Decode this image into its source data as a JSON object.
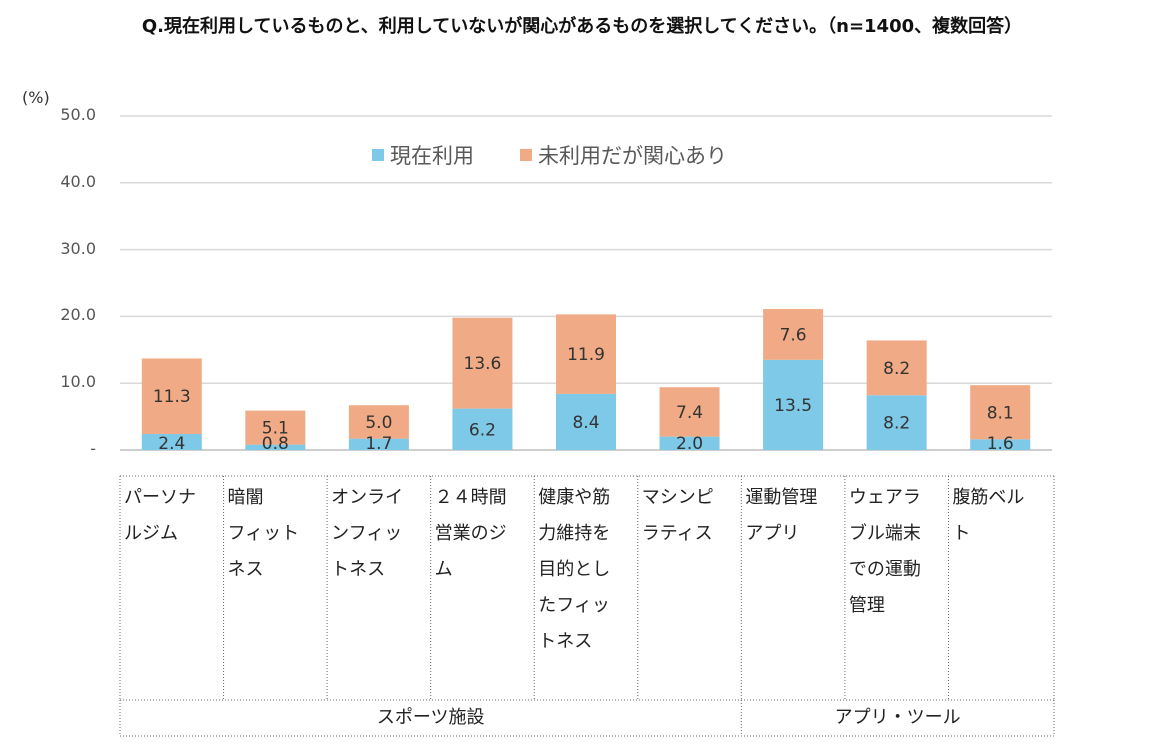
{
  "title": "Q.現在利用しているものと、利用していないが関心があるものを選択してください。（n=1400、複数回答）",
  "chart_data": {
    "type": "bar",
    "stacked": true,
    "title": "Q.現在利用しているものと、利用していないが関心があるものを選択してください。（n=1400、複数回答）",
    "ylabel": "(%)",
    "ylim": [
      0,
      50
    ],
    "yticks": [
      "-",
      "10.0",
      "20.0",
      "30.0",
      "40.0",
      "50.0"
    ],
    "grid": true,
    "legend_position": "top",
    "categories": [
      "パーソナルジム",
      "暗闇フィットネス",
      "オンラインフィットネス",
      "２４時間営業のジム",
      "健康や筋力維持を目的としたフィットネス",
      "マシンピラティス",
      "運動管理アプリ",
      "ウェアラブル端末での運動管理",
      "腹筋ベルト"
    ],
    "category_lines": [
      [
        "パーソナ",
        "ルジム"
      ],
      [
        "暗闇",
        "フィット",
        "ネス"
      ],
      [
        "オンライ",
        "ンフィッ",
        "トネス"
      ],
      [
        "２４時間",
        "営業のジ",
        "ム"
      ],
      [
        "健康や筋",
        "力維持を",
        "目的とし",
        "たフィッ",
        "トネス"
      ],
      [
        "マシンピ",
        "ラティス"
      ],
      [
        "運動管理",
        "アプリ"
      ],
      [
        "ウェアラ",
        "ブル端末",
        "での運動",
        "管理"
      ],
      [
        "腹筋ベル",
        "ト"
      ]
    ],
    "groups": [
      {
        "label": "スポーツ施設",
        "span": 6
      },
      {
        "label": "アプリ・ツール",
        "span": 3
      }
    ],
    "series": [
      {
        "name": "現在利用",
        "color": "#7EC8E8",
        "values": [
          2.4,
          0.8,
          1.7,
          6.2,
          8.4,
          2.0,
          13.5,
          8.2,
          1.6
        ],
        "labels": [
          "2.4",
          "0.8",
          "1.7",
          "6.2",
          "8.4",
          "2.0",
          "13.5",
          "8.2",
          "1.6"
        ]
      },
      {
        "name": "未利用だが関心あり",
        "color": "#F0AA85",
        "values": [
          11.3,
          5.1,
          5.0,
          13.6,
          11.9,
          7.4,
          7.6,
          8.2,
          8.1
        ],
        "labels": [
          "11.3",
          "5.1",
          "5.0",
          "13.6",
          "11.9",
          "7.4",
          "7.6",
          "8.2",
          "8.1"
        ]
      }
    ]
  }
}
